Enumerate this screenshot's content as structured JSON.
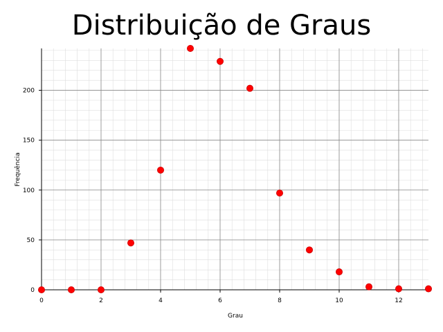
{
  "chart_data": {
    "type": "scatter",
    "title": "Distribuição de Graus",
    "xlabel": "Grau",
    "ylabel": "Frequência",
    "xlim": [
      0,
      13
    ],
    "ylim": [
      0,
      242
    ],
    "xticks": [
      0,
      2,
      4,
      6,
      8,
      10,
      12
    ],
    "yticks": [
      0,
      50,
      100,
      150,
      200
    ],
    "grid": true,
    "minor_grid": true,
    "marker_color": "#ff0000",
    "series": [
      {
        "x": [
          0,
          1,
          2,
          3,
          4,
          5,
          6,
          7,
          8,
          9,
          10,
          11,
          12,
          13
        ],
        "y": [
          0,
          0,
          0,
          47,
          120,
          242,
          229,
          202,
          97,
          40,
          18,
          3,
          1,
          1
        ]
      }
    ]
  }
}
